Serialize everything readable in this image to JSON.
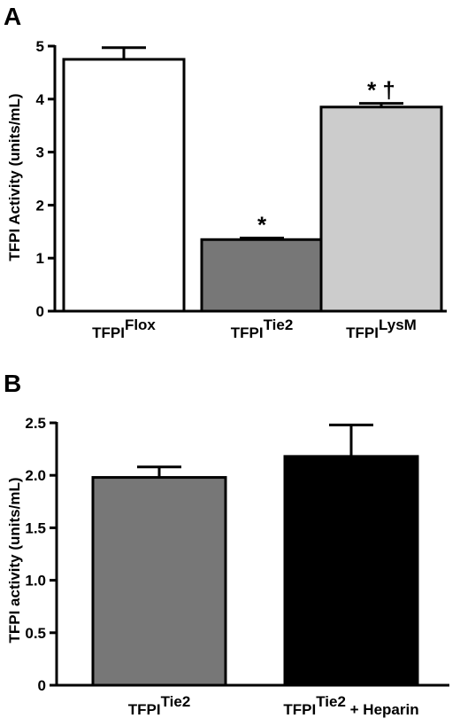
{
  "chart_data": [
    {
      "panel": "A",
      "type": "bar",
      "ylabel": "TFPI Activity (units/mL)",
      "ylim": [
        0,
        5
      ],
      "yticks": [
        "0",
        "1",
        "2",
        "3",
        "4",
        "5"
      ],
      "categories": [
        {
          "base": "TFPI",
          "sup": "Flox"
        },
        {
          "base": "TFPI",
          "sup": "Tie2"
        },
        {
          "base": "TFPI",
          "sup": "LysM"
        }
      ],
      "values": [
        4.75,
        1.35,
        3.85
      ],
      "errors": [
        0.22,
        0.03,
        0.07
      ],
      "colors": [
        "#ffffff",
        "#777777",
        "#cccccc"
      ],
      "annotations": [
        "",
        "*",
        "* †"
      ]
    },
    {
      "panel": "B",
      "type": "bar",
      "ylabel": "TFPI activity (units/mL)",
      "ylim": [
        0,
        2.5
      ],
      "yticks": [
        "0",
        "0.5",
        "1.0",
        "1.5",
        "2.0",
        "2.5"
      ],
      "categories": [
        {
          "base": "TFPI",
          "sup": "Tie2",
          "suffix": ""
        },
        {
          "base": "TFPI",
          "sup": "Tie2",
          "suffix": " + Heparin"
        }
      ],
      "values": [
        1.98,
        2.18
      ],
      "errors": [
        0.1,
        0.3
      ],
      "colors": [
        "#777777",
        "#000000"
      ]
    }
  ]
}
